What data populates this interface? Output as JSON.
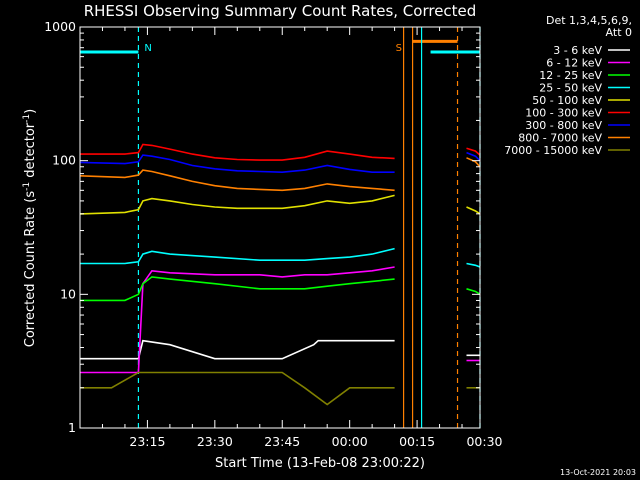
{
  "chart_data": {
    "type": "line",
    "title": "RHESSI Observing Summary Count Rates, Corrected",
    "xlabel": "Start Time (13-Feb-08 23:00:22)",
    "ylabel_main": "Corrected Count Rate (s",
    "ylabel_sup1": "-1",
    "ylabel_mid": " detector",
    "ylabel_sup2": "-1",
    "ylabel_end": ")",
    "yscale": "log",
    "ylim": [
      1,
      1000
    ],
    "xlim_min": [
      0,
      89
    ],
    "x_ticks": [
      {
        "min": 15,
        "label": "23:15"
      },
      {
        "min": 30,
        "label": "23:30"
      },
      {
        "min": 45,
        "label": "23:45"
      },
      {
        "min": 60,
        "label": "00:00"
      },
      {
        "min": 75,
        "label": "00:15"
      },
      {
        "min": 90,
        "label": "00:30"
      }
    ],
    "y_ticks": [
      {
        "value": 1,
        "label": "1"
      },
      {
        "value": 10,
        "label": "10"
      },
      {
        "value": 100,
        "label": "100"
      },
      {
        "value": 1000,
        "label": "1000"
      }
    ],
    "legend_header": [
      "Det 1,3,4,5,6,9,",
      "Att 0"
    ],
    "series": [
      {
        "name": "3 - 6 keV",
        "color": "#ffffff",
        "x_min": [
          0,
          13,
          14,
          20,
          30,
          45,
          52,
          53,
          60,
          65,
          70,
          85,
          86,
          89
        ],
        "values": [
          3.3,
          3.3,
          4.5,
          4.2,
          3.3,
          3.3,
          4.2,
          4.5,
          4.5,
          4.5,
          4.5,
          null,
          3.5,
          3.5
        ]
      },
      {
        "name": "6 - 12 keV",
        "color": "#ff00ff",
        "x_min": [
          0,
          8,
          13,
          14,
          16,
          20,
          30,
          40,
          45,
          50,
          55,
          60,
          65,
          70,
          85,
          86,
          89
        ],
        "values": [
          2.6,
          2.6,
          2.6,
          12,
          15,
          14.5,
          14,
          14,
          13.5,
          14,
          14,
          14.5,
          15,
          16,
          null,
          3.2,
          3.2
        ]
      },
      {
        "name": "12 - 25 keV",
        "color": "#00ff00",
        "x_min": [
          0,
          10,
          13,
          14,
          16,
          20,
          30,
          40,
          45,
          50,
          55,
          60,
          65,
          70,
          85,
          86,
          88,
          89
        ],
        "values": [
          9,
          9,
          10,
          12,
          13.5,
          13,
          12,
          11,
          11,
          11,
          11.5,
          12,
          12.5,
          13,
          null,
          11,
          10.5,
          10
        ]
      },
      {
        "name": "25 - 50 keV",
        "color": "#00ffff",
        "x_min": [
          0,
          10,
          13,
          14,
          16,
          20,
          30,
          40,
          45,
          50,
          55,
          60,
          65,
          70,
          85,
          86,
          88,
          89
        ],
        "values": [
          17,
          17,
          17.5,
          20,
          21,
          20,
          19,
          18,
          18,
          18,
          18.5,
          19,
          20,
          22,
          null,
          17,
          16.5,
          16
        ]
      },
      {
        "name": "50 - 100 keV",
        "color": "#e0e000",
        "x_min": [
          0,
          10,
          13,
          14,
          16,
          20,
          25,
          30,
          35,
          40,
          45,
          50,
          55,
          60,
          65,
          70,
          85,
          86,
          88,
          89
        ],
        "values": [
          40,
          41,
          43,
          50,
          52,
          50,
          47,
          45,
          44,
          44,
          44,
          46,
          50,
          48,
          50,
          55,
          null,
          45,
          42,
          40
        ]
      },
      {
        "name": "100 - 300 keV",
        "color": "#ff0000",
        "x_min": [
          0,
          10,
          13,
          14,
          16,
          20,
          25,
          30,
          35,
          40,
          45,
          50,
          55,
          60,
          65,
          70,
          85,
          86,
          88,
          89
        ],
        "values": [
          112,
          112,
          115,
          132,
          130,
          122,
          112,
          105,
          102,
          101,
          101,
          106,
          118,
          112,
          106,
          104,
          null,
          124,
          118,
          110
        ]
      },
      {
        "name": "300 - 800 keV",
        "color": "#0000ff",
        "x_min": [
          0,
          10,
          13,
          14,
          16,
          20,
          25,
          30,
          35,
          40,
          45,
          50,
          55,
          60,
          65,
          70,
          85,
          86,
          88,
          89
        ],
        "values": [
          97,
          95,
          98,
          110,
          108,
          102,
          92,
          87,
          84,
          83,
          82,
          85,
          92,
          86,
          82,
          82,
          null,
          115,
          108,
          100
        ]
      },
      {
        "name": "800 - 7000 keV",
        "color": "#ff8000",
        "x_min": [
          0,
          10,
          13,
          14,
          16,
          20,
          25,
          30,
          35,
          40,
          45,
          50,
          55,
          60,
          65,
          70,
          85,
          86,
          88,
          89
        ],
        "values": [
          77,
          75,
          78,
          85,
          83,
          77,
          70,
          65,
          62,
          61,
          60,
          62,
          67,
          64,
          62,
          60,
          null,
          105,
          98,
          90
        ]
      },
      {
        "name": "7000 - 15000 keV",
        "color": "#808000",
        "x_min": [
          0,
          1,
          7,
          13,
          20,
          45,
          50,
          55,
          60,
          65,
          70,
          85,
          86,
          89
        ],
        "values": [
          2.0,
          2.0,
          2.0,
          2.6,
          2.6,
          2.6,
          2.0,
          1.5,
          2.0,
          2.0,
          2.0,
          null,
          2.0,
          2.0
        ]
      }
    ],
    "annotations": [
      {
        "kind": "bar",
        "color": "#00ffff",
        "x_from": 0,
        "x_to": 13,
        "y": 650,
        "label": ""
      },
      {
        "kind": "vline",
        "color": "#00ffff",
        "dashed": true,
        "x": 13,
        "label": "N"
      },
      {
        "kind": "vline",
        "color": "#ff8000",
        "dashed": false,
        "x": 72,
        "label": "S"
      },
      {
        "kind": "vline",
        "color": "#ff8000",
        "dashed": false,
        "x": 74
      },
      {
        "kind": "bar",
        "color": "#ff8000",
        "x_from": 74,
        "x_to": 84,
        "y": 780
      },
      {
        "kind": "vline",
        "color": "#00ffff",
        "dashed": false,
        "x": 76
      },
      {
        "kind": "bar",
        "color": "#00ffff",
        "x_from": 78,
        "x_to": 89,
        "y": 650
      },
      {
        "kind": "vline",
        "color": "#ff8000",
        "dashed": true,
        "x": 84
      },
      {
        "kind": "vline",
        "color": "#00ffff",
        "dashed": true,
        "x": 89
      }
    ],
    "footer_stamp": "13-Oct-2021 20:03"
  }
}
